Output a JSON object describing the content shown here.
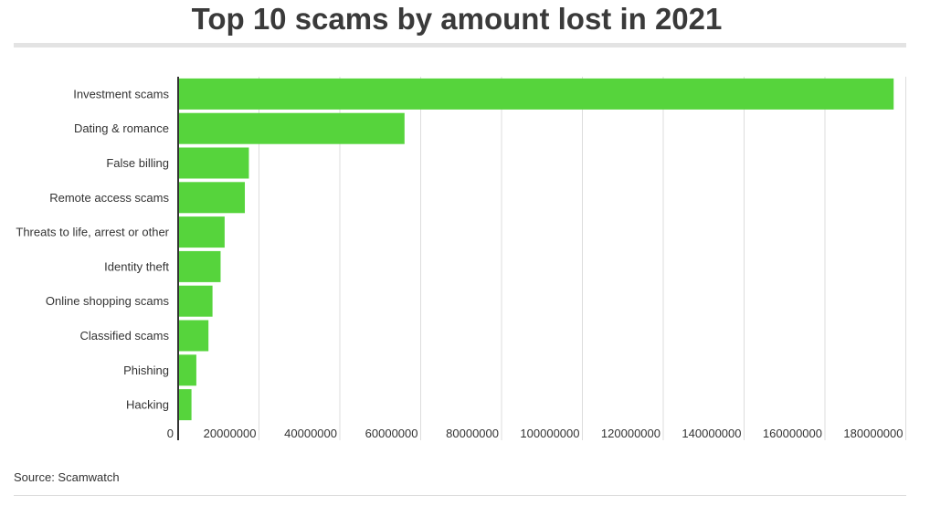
{
  "title": "Top 10 scams by amount lost in 2021",
  "source": "Source: Scamwatch",
  "colors": {
    "bar": "#56d43c",
    "grid": "#dddddd",
    "axis": "#333333",
    "text": "#333333"
  },
  "chart_data": {
    "type": "bar",
    "orientation": "horizontal",
    "title": "Top 10 scams by amount lost in 2021",
    "categories": [
      "Investment scams",
      "Dating & romance",
      "False billing",
      "Remote access scams",
      "Threats to life, arrest or other",
      "Identity theft",
      "Online shopping scams",
      "Classified scams",
      "Phishing",
      "Hacking"
    ],
    "values": [
      177000000,
      56000000,
      17500000,
      16500000,
      11500000,
      10500000,
      8500000,
      7500000,
      4500000,
      3300000
    ],
    "xlim": [
      0,
      180000000
    ],
    "xticks": [
      "0",
      "20000000",
      "40000000",
      "60000000",
      "80000000",
      "100000000",
      "120000000",
      "140000000",
      "160000000",
      "180000000"
    ],
    "xlabel": "",
    "ylabel": "",
    "grid": true,
    "legend": "none"
  }
}
